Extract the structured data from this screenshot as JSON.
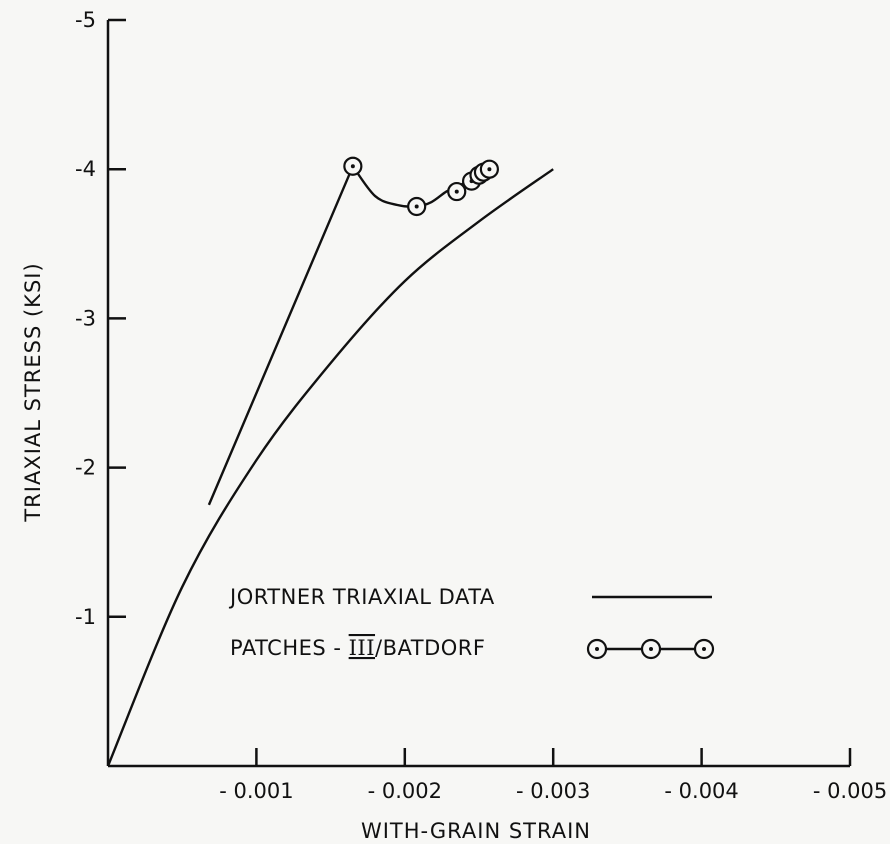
{
  "chart_data": {
    "type": "line",
    "title": "",
    "xlabel": "WITH-GRAIN STRAIN",
    "ylabel": "TRIAXIAL STRESS (KSI)",
    "xlim": [
      0,
      -0.005
    ],
    "ylim": [
      0,
      -5
    ],
    "x_ticks": [
      -0.001,
      -0.002,
      -0.003,
      -0.004,
      -0.005
    ],
    "x_tick_labels": [
      "- 0.001",
      "- 0.002",
      "- 0.003",
      "- 0.004",
      "- 0.005"
    ],
    "y_ticks": [
      -1,
      -2,
      -3,
      -4,
      -5
    ],
    "y_tick_labels": [
      "-1",
      "-2",
      "-3",
      "-4",
      "-5"
    ],
    "grid": false,
    "legend_position": "bottom-right",
    "series": [
      {
        "name": "JORTNER TRIAXIAL DATA",
        "marker": "none",
        "x": [
          0,
          -0.0005,
          -0.001,
          -0.0015,
          -0.002,
          -0.0025,
          -0.003
        ],
        "y": [
          0,
          -1.2,
          -2.05,
          -2.7,
          -3.25,
          -3.65,
          -4.0
        ]
      },
      {
        "name_prefix": "PATCHES - ",
        "name_roman": "III",
        "name_suffix": "/BATDORF",
        "marker": "circle-dot",
        "x": [
          -0.00068,
          -0.00165,
          -0.0018,
          -0.00195,
          -0.00208,
          -0.00218,
          -0.00228,
          -0.00235,
          -0.00242,
          -0.00245,
          -0.00248,
          -0.0025,
          -0.00252,
          -0.00255
        ],
        "y": [
          -1.75,
          -4.02,
          -3.82,
          -3.76,
          -3.75,
          -3.78,
          -3.85,
          -3.88,
          -3.92,
          -3.94,
          -3.96,
          -3.97,
          -3.98,
          -4.0
        ],
        "marked_points": [
          {
            "x": -0.00165,
            "y": -4.02
          },
          {
            "x": -0.00208,
            "y": -3.75
          },
          {
            "x": -0.00235,
            "y": -3.85
          },
          {
            "x": -0.00245,
            "y": -3.92
          },
          {
            "x": -0.0025,
            "y": -3.96
          },
          {
            "x": -0.00253,
            "y": -3.98
          },
          {
            "x": -0.00257,
            "y": -4.0
          }
        ]
      }
    ]
  }
}
